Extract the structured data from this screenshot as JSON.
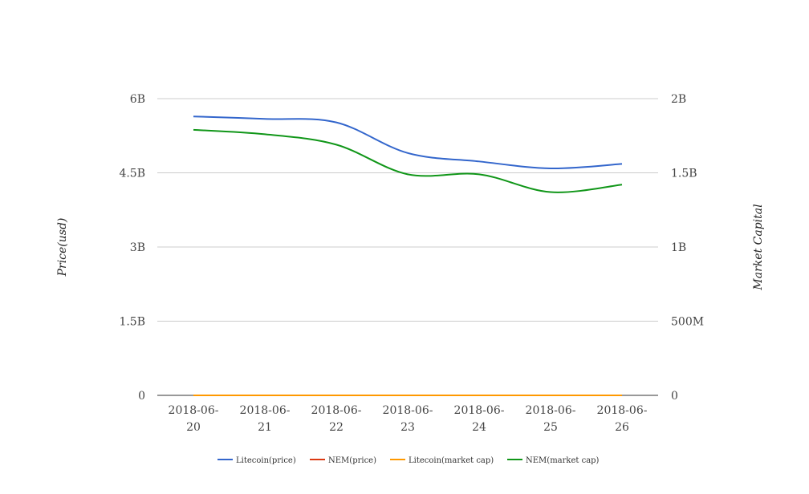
{
  "chart_data": {
    "type": "line",
    "title": "",
    "x": [
      "2018-06-20",
      "2018-06-21",
      "2018-06-22",
      "2018-06-23",
      "2018-06-24",
      "2018-06-25",
      "2018-06-26"
    ],
    "x_tick_labels": [
      [
        "2018-06-",
        "20"
      ],
      [
        "2018-06-",
        "21"
      ],
      [
        "2018-06-",
        "22"
      ],
      [
        "2018-06-",
        "23"
      ],
      [
        "2018-06-",
        "24"
      ],
      [
        "2018-06-",
        "25"
      ],
      [
        "2018-06-",
        "26"
      ]
    ],
    "y_left": {
      "label": "Price(usd)",
      "min": 0,
      "max": 6000000000,
      "ticks": [
        0,
        1500000000,
        3000000000,
        4500000000,
        6000000000
      ],
      "tick_labels": [
        "0",
        "1.5B",
        "3B",
        "4.5B",
        "6B"
      ]
    },
    "y_right": {
      "label": "Market Capital",
      "min": 0,
      "max": 2000000000,
      "ticks": [
        0,
        500000000,
        1000000000,
        1500000000,
        2000000000
      ],
      "tick_labels": [
        "0",
        "500M",
        "1B",
        "1.5B",
        "2B"
      ]
    },
    "grid": true,
    "legend_position": "bottom",
    "series": [
      {
        "name": "Litecoin(price)",
        "axis": "left",
        "color": "#3366cc",
        "values": [
          5640000000,
          5590000000,
          5520000000,
          4900000000,
          4730000000,
          4590000000,
          4680000000
        ]
      },
      {
        "name": "NEM(price)",
        "axis": "left",
        "color": "#dc3912",
        "values": [
          0.19,
          0.18,
          0.17,
          0.16,
          0.16,
          0.15,
          0.16
        ]
      },
      {
        "name": "Litecoin(market cap)",
        "axis": "right",
        "color": "#ff9900",
        "values": [
          85.0,
          84.0,
          82.0,
          77.0,
          76.0,
          74.0,
          75.0
        ]
      },
      {
        "name": "NEM(market cap)",
        "axis": "right",
        "color": "#109618",
        "values": [
          1790000000,
          1760000000,
          1690000000,
          1490000000,
          1490000000,
          1370000000,
          1420000000
        ]
      }
    ]
  }
}
